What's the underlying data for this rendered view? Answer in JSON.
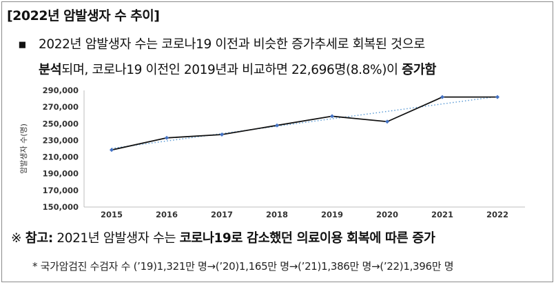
{
  "header": {
    "title": "[2022년 암발생자 수 추이]"
  },
  "summary": {
    "bullet": "▪",
    "line1": "2022년 암발생자 수는 코로나19 이전과 비슷한 증가추세로 회복된 것으로",
    "line2_bold_start": "분석",
    "line2_part1": "되며, 코로나19 이전인 2019년과 비교하면 ",
    "line2_highlight": "22,696명(8.8%)",
    "line2_part2": "이 ",
    "line2_bold_end": "증가함"
  },
  "chart_data": {
    "type": "line",
    "categories": [
      "2015",
      "2016",
      "2017",
      "2018",
      "2019",
      "2020",
      "2021",
      "2022"
    ],
    "series": [
      {
        "values": [
          218500,
          233000,
          237000,
          248000,
          259000,
          252500,
          282000,
          282000
        ],
        "color": "#111111",
        "marker_color": "#4472c4"
      }
    ],
    "trendline": {
      "style": "dotted",
      "color": "#5b9bd5"
    },
    "ylabel": "암발생자 수(명)",
    "ylim": [
      150000,
      290000
    ],
    "yticks": [
      "150,000",
      "170,000",
      "190,000",
      "210,000",
      "230,000",
      "250,000",
      "270,000",
      "290,000"
    ],
    "ytick_values": [
      150000,
      170000,
      190000,
      210000,
      230000,
      250000,
      270000,
      290000
    ],
    "grid": false,
    "legend": "none"
  },
  "note": {
    "symbol": "※",
    "label": "참고:",
    "text": " 2021년 암발생자 수는 ",
    "bold_text": "코로나19로 감소했던 의료이용 회복에 따른 증가"
  },
  "footnote": {
    "text": "* 국가암검진 수검자 수 (’19)1,321만 명→(’20)1,165만 명→(’21)1,386만 명→(’22)1,396만 명"
  }
}
